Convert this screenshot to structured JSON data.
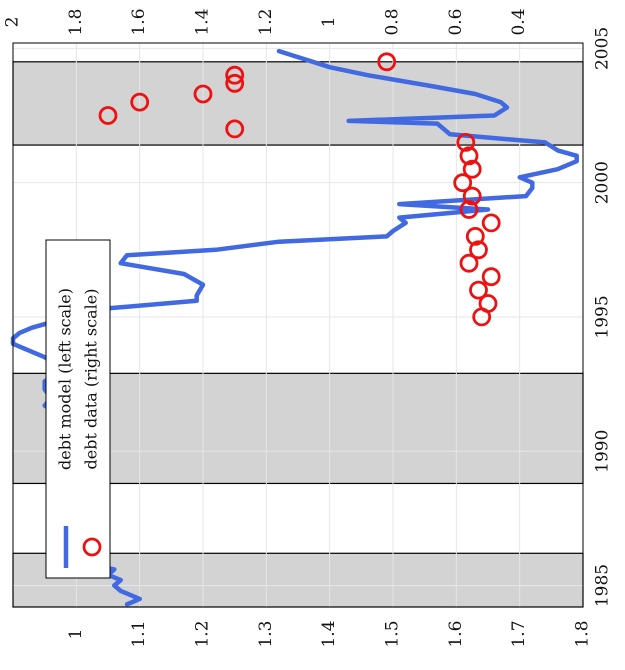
{
  "chart_data": {
    "type": "line",
    "orientation": "rotated-90-clockwise",
    "x_axis": {
      "min": 1984.2,
      "max": 2005.2,
      "ticks": [
        1985,
        1990,
        1995,
        2000,
        2005
      ],
      "tick_labels": [
        "1985",
        "1990",
        "1995",
        "2000",
        "2005"
      ]
    },
    "left_axis": {
      "min": 0.9,
      "max": 1.8,
      "ticks": [
        1,
        1.1,
        1.2,
        1.3,
        1.4,
        1.5,
        1.6,
        1.7,
        1.8
      ],
      "tick_labels": [
        "1",
        "1.1",
        "1.2",
        "1.3",
        "1.4",
        "1.5",
        "1.6",
        "1.7",
        "1.8"
      ]
    },
    "right_axis": {
      "min": 0.2,
      "max": 2.0,
      "ticks": [
        0.4,
        0.6,
        0.8,
        1,
        1.2,
        1.4,
        1.6,
        1.8,
        2
      ],
      "tick_labels": [
        "0.4",
        "0.6",
        "0.8",
        "1",
        "1.2",
        "1.4",
        "1.6",
        "1.8",
        "2"
      ]
    },
    "grid": true,
    "legend_position": "inside-left",
    "recessions": [
      [
        1984.2,
        1986.2
      ],
      [
        1988.8,
        1992.9
      ],
      [
        2001.4,
        2004.5
      ]
    ],
    "series": [
      {
        "name": "debt model (left scale)",
        "axis": "left",
        "color": "#4169e1",
        "style": "line",
        "x": [
          1984.3,
          1984.5,
          1984.8,
          1985.0,
          1985.2,
          1985.4,
          1985.6,
          1985.8,
          1986.0,
          1986.2,
          1986.4,
          1986.6,
          1986.8,
          1987.0,
          1987.2,
          1987.4,
          1987.6,
          1987.8,
          1988.0,
          1988.3,
          1988.6,
          1989.0,
          1989.3,
          1989.6,
          1989.9,
          1990.2,
          1990.5,
          1990.8,
          1991.1,
          1991.4,
          1991.7,
          1992.0,
          1992.3,
          1992.6,
          1992.9,
          1993.2,
          1993.5,
          1993.8,
          1994.0,
          1994.2,
          1994.4,
          1994.6,
          1994.8,
          1995.0,
          1995.3,
          1995.6,
          1995.8,
          1996.2,
          1996.6,
          1997.0,
          1997.3,
          1997.5,
          1997.8,
          1998.0,
          1998.2,
          1998.5,
          1998.7,
          1999.0,
          1999.2,
          1999.5,
          1999.8,
          2000.0,
          2000.2,
          2000.5,
          2000.8,
          2001.0,
          2001.2,
          2001.5,
          2001.8,
          2002.0,
          2002.2,
          2002.3,
          2002.5,
          2002.8,
          2003.0,
          2003.3,
          2003.6,
          2004.0,
          2004.3,
          2004.6,
          2004.9
        ],
        "y": [
          1.08,
          1.1,
          1.07,
          1.06,
          1.07,
          1.05,
          1.06,
          1.02,
          1.03,
          1.01,
          1.02,
          1.01,
          1.01,
          0.99,
          0.97,
          0.96,
          0.96,
          0.96,
          0.97,
          0.97,
          0.98,
          0.98,
          0.99,
          0.98,
          0.97,
          0.98,
          0.96,
          0.97,
          0.96,
          0.97,
          0.95,
          0.96,
          0.95,
          0.95,
          0.97,
          0.97,
          0.95,
          0.92,
          0.9,
          0.9,
          0.91,
          0.93,
          0.96,
          0.98,
          1.04,
          1.19,
          1.19,
          1.2,
          1.17,
          1.07,
          1.08,
          1.22,
          1.32,
          1.49,
          1.5,
          1.52,
          1.51,
          1.65,
          1.51,
          1.71,
          1.72,
          1.72,
          1.7,
          1.76,
          1.79,
          1.79,
          1.76,
          1.74,
          1.59,
          1.58,
          1.57,
          1.43,
          1.66,
          1.68,
          1.67,
          1.63,
          1.56,
          1.46,
          1.4,
          1.36,
          1.32
        ]
      },
      {
        "name": "debt data (right scale)",
        "axis": "right",
        "color": "#ee1111",
        "style": "markers",
        "marker": "circle-open",
        "x": [
          1995.0,
          1995.5,
          1996.0,
          1996.5,
          1997.0,
          1997.5,
          1998.0,
          1998.5,
          1999.0,
          1999.5,
          2000.0,
          2000.5,
          2001.0,
          2001.5,
          2002.0,
          2002.5,
          2003.0,
          2003.3,
          2003.7,
          2004.0,
          2004.5
        ],
        "y": [
          0.52,
          0.5,
          0.53,
          0.49,
          0.56,
          0.53,
          0.54,
          0.49,
          0.56,
          0.55,
          0.58,
          0.55,
          0.56,
          0.57,
          1.3,
          1.7,
          1.6,
          1.4,
          1.3,
          1.3,
          0.82
        ]
      }
    ]
  }
}
